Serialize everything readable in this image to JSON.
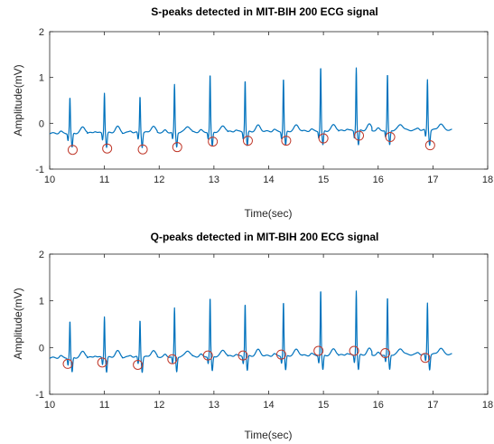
{
  "chart_data": [
    {
      "type": "line",
      "title": "S-peaks detected in MIT-BIH 200 ECG signal",
      "xlabel": "Time(sec)",
      "ylabel": "Amplitude(mV)",
      "xlim": [
        10,
        18
      ],
      "ylim": [
        -1,
        2
      ],
      "xticks": [
        "10",
        "11",
        "12",
        "13",
        "14",
        "15",
        "16",
        "17",
        "18"
      ],
      "yticks": [
        "-1",
        "0",
        "1",
        "2"
      ],
      "grid": false,
      "line_color": "#0072BD",
      "marker_color": "#c0392b",
      "beats": [
        {
          "r_time": 10.37,
          "r_amp": 0.58
        },
        {
          "r_time": 11.0,
          "r_amp": 0.68
        },
        {
          "r_time": 11.65,
          "r_amp": 0.6
        },
        {
          "r_time": 12.28,
          "r_amp": 0.83
        },
        {
          "r_time": 12.93,
          "r_amp": 1.05
        },
        {
          "r_time": 13.57,
          "r_amp": 0.93
        },
        {
          "r_time": 14.27,
          "r_amp": 0.95
        },
        {
          "r_time": 14.95,
          "r_amp": 1.2
        },
        {
          "r_time": 15.6,
          "r_amp": 1.18
        },
        {
          "r_time": 16.17,
          "r_amp": 1.02
        },
        {
          "r_time": 16.9,
          "r_amp": 0.9
        }
      ],
      "end_time": 17.35,
      "peaks": [
        {
          "x": 10.42,
          "y": -0.58
        },
        {
          "x": 11.05,
          "y": -0.55
        },
        {
          "x": 11.7,
          "y": -0.57
        },
        {
          "x": 12.33,
          "y": -0.52
        },
        {
          "x": 12.98,
          "y": -0.4
        },
        {
          "x": 13.62,
          "y": -0.38
        },
        {
          "x": 14.32,
          "y": -0.38
        },
        {
          "x": 15.0,
          "y": -0.33
        },
        {
          "x": 15.65,
          "y": -0.27
        },
        {
          "x": 16.22,
          "y": -0.3
        },
        {
          "x": 16.95,
          "y": -0.48
        }
      ]
    },
    {
      "type": "line",
      "title": "Q-peaks detected in MIT-BIH 200 ECG signal",
      "xlabel": "Time(sec)",
      "ylabel": "Amplitude(mV)",
      "xlim": [
        10,
        18
      ],
      "ylim": [
        -1,
        2
      ],
      "xticks": [
        "10",
        "11",
        "12",
        "13",
        "14",
        "15",
        "16",
        "17",
        "18"
      ],
      "yticks": [
        "-1",
        "0",
        "1",
        "2"
      ],
      "grid": false,
      "line_color": "#0072BD",
      "marker_color": "#c0392b",
      "beats": [
        {
          "r_time": 10.37,
          "r_amp": 0.58
        },
        {
          "r_time": 11.0,
          "r_amp": 0.68
        },
        {
          "r_time": 11.65,
          "r_amp": 0.6
        },
        {
          "r_time": 12.28,
          "r_amp": 0.83
        },
        {
          "r_time": 12.93,
          "r_amp": 1.05
        },
        {
          "r_time": 13.57,
          "r_amp": 0.93
        },
        {
          "r_time": 14.27,
          "r_amp": 0.95
        },
        {
          "r_time": 14.95,
          "r_amp": 1.2
        },
        {
          "r_time": 15.6,
          "r_amp": 1.18
        },
        {
          "r_time": 16.17,
          "r_amp": 1.02
        },
        {
          "r_time": 16.9,
          "r_amp": 0.9
        }
      ],
      "end_time": 17.35,
      "peaks": [
        {
          "x": 10.33,
          "y": -0.35
        },
        {
          "x": 10.96,
          "y": -0.32
        },
        {
          "x": 11.61,
          "y": -0.37
        },
        {
          "x": 12.24,
          "y": -0.25
        },
        {
          "x": 12.89,
          "y": -0.17
        },
        {
          "x": 13.53,
          "y": -0.17
        },
        {
          "x": 14.23,
          "y": -0.15
        },
        {
          "x": 14.91,
          "y": -0.07
        },
        {
          "x": 15.56,
          "y": -0.07
        },
        {
          "x": 16.13,
          "y": -0.12
        },
        {
          "x": 16.86,
          "y": -0.22
        }
      ]
    }
  ]
}
